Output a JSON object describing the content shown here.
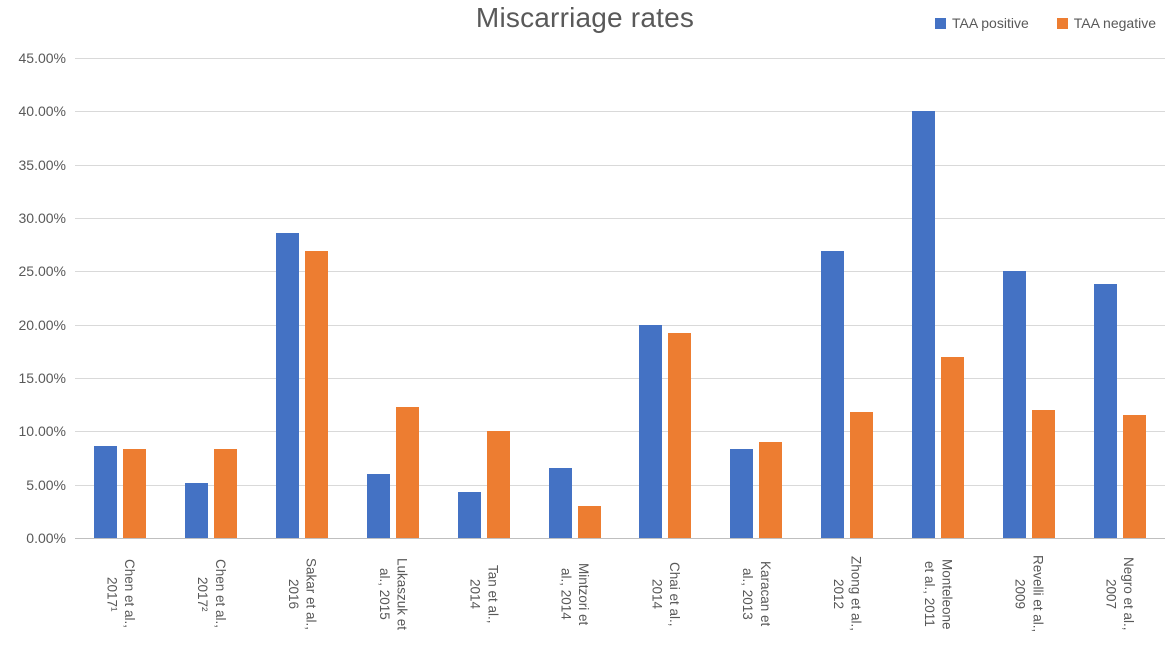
{
  "title": "Miscarriage rates",
  "colors": {
    "series_positive": "#4472C4",
    "series_negative": "#ED7D31",
    "text": "#595959",
    "gridline": "#D9D9D9",
    "axis_line": "#BFBFBF",
    "background": "#FFFFFF"
  },
  "legend": {
    "position": "top-right",
    "items": [
      {
        "label": "TAA positive",
        "color": "#4472C4"
      },
      {
        "label": "TAA negative",
        "color": "#ED7D31"
      }
    ]
  },
  "chart_data": {
    "type": "bar",
    "title": "Miscarriage rates",
    "unit": "percent",
    "categories": [
      "Chen et al., 2017¹",
      "Chen et al., 2017²",
      "Sakar et al., 2016",
      "Lukaszuk et al., 2015",
      "Tan et al., 2014",
      "Mintzori et al., 2014",
      "Chai et al., 2014",
      "Karacan et al., 2013",
      "Zhong et al., 2012",
      "Monteleone et al., 2011",
      "Revelli et al., 2009",
      "Negro et al., 2007"
    ],
    "category_label_lines": [
      [
        "Chen et al.,",
        "2017¹"
      ],
      [
        "Chen et al.,",
        "2017²"
      ],
      [
        "Sakar et al.,",
        "2016"
      ],
      [
        "Lukaszuk et",
        "al., 2015"
      ],
      [
        "Tan et al.,",
        "2014"
      ],
      [
        "Mintzori et",
        "al., 2014"
      ],
      [
        "Chai et al.,",
        "2014"
      ],
      [
        "Karacan et",
        "al., 2013"
      ],
      [
        "Zhong et al.,",
        "2012"
      ],
      [
        "Monteleone",
        "et al., 2011"
      ],
      [
        "Revelli et al.,",
        "2009"
      ],
      [
        "Negro et al.,",
        "2007"
      ]
    ],
    "series": [
      {
        "name": "TAA positive",
        "color": "#4472C4",
        "values": [
          8.6,
          5.2,
          28.6,
          6.0,
          4.3,
          6.6,
          20.0,
          8.3,
          26.9,
          40.0,
          25.0,
          23.8
        ]
      },
      {
        "name": "TAA negative",
        "color": "#ED7D31",
        "values": [
          8.3,
          8.3,
          26.9,
          12.3,
          10.0,
          3.0,
          19.2,
          9.0,
          11.8,
          17.0,
          12.0,
          11.5
        ]
      }
    ],
    "ylim": [
      0,
      45
    ],
    "ytick_step": 5,
    "yticks": [
      "0.00%",
      "5.00%",
      "10.00%",
      "15.00%",
      "20.00%",
      "25.00%",
      "30.00%",
      "35.00%",
      "40.00%",
      "45.00%"
    ],
    "grid": true,
    "legend_position": "top-right"
  }
}
